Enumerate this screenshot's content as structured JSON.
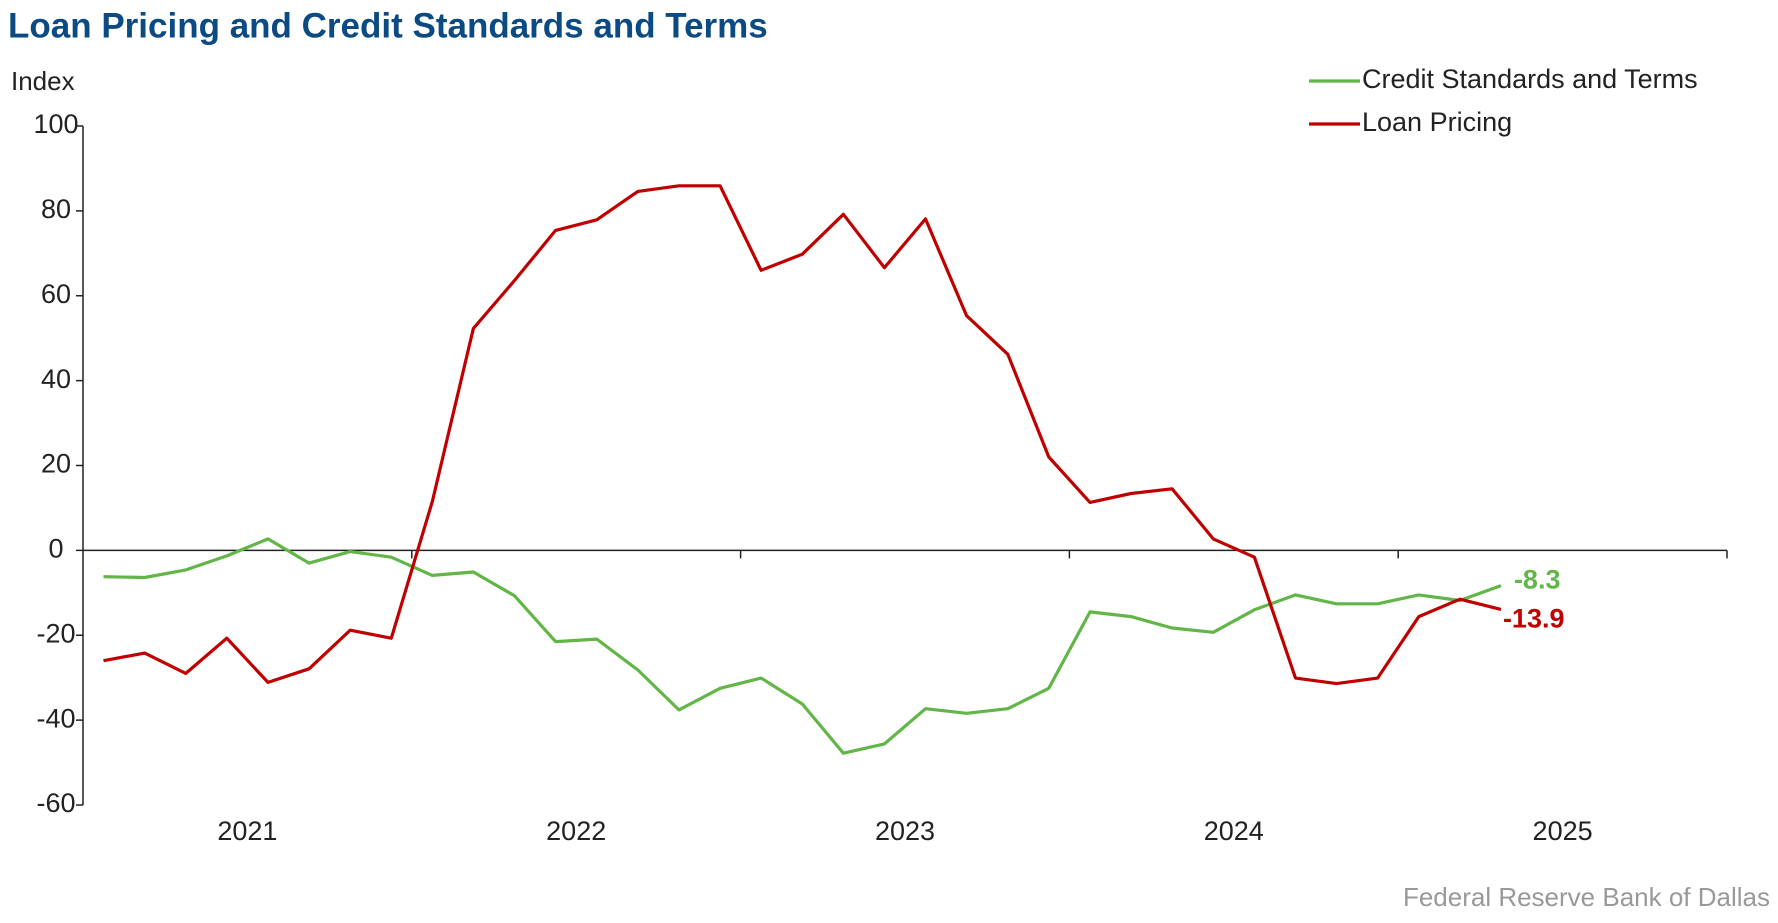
{
  "chart_data": {
    "type": "line",
    "title": "Loan Pricing and Credit Standards and Terms",
    "y_label": "Index",
    "source": "Federal Reserve Bank of Dallas",
    "x": [
      2021.0625,
      2021.1875,
      2021.3125,
      2021.4375,
      2021.5625,
      2021.6875,
      2021.8125,
      2021.9375,
      2022.0625,
      2022.1875,
      2022.3125,
      2022.4375,
      2022.5625,
      2022.6875,
      2022.8125,
      2022.9375,
      2023.0625,
      2023.1875,
      2023.3125,
      2023.4375,
      2023.5625,
      2023.6875,
      2023.8125,
      2023.9375,
      2024.0625,
      2024.1875,
      2024.3125,
      2024.4375,
      2024.5625,
      2024.6875,
      2024.8125,
      2024.9375,
      2025.0625,
      2025.1875,
      2025.3125
    ],
    "series": [
      {
        "name": "Credit Standards and Terms",
        "color": "#62b547",
        "values": [
          -6.2,
          -6.4,
          -4.6,
          -1.3,
          2.7,
          -3.0,
          -0.3,
          -1.6,
          -5.9,
          -5.1,
          -10.7,
          -21.5,
          -20.9,
          -28.2,
          -37.6,
          -32.5,
          -30.1,
          -36.2,
          -47.8,
          -45.6,
          -37.3,
          -38.4,
          -37.3,
          -32.5,
          -14.5,
          -15.6,
          -18.3,
          -19.3,
          -14.0,
          -10.5,
          -12.6,
          -12.6,
          -10.5,
          -11.8,
          -8.3
        ]
      },
      {
        "name": "Loan Pricing",
        "color": "#c00000",
        "values": [
          -26.0,
          -24.2,
          -29.0,
          -20.7,
          -31.1,
          -27.9,
          -18.8,
          -20.7,
          11.5,
          52.3,
          63.6,
          75.4,
          77.9,
          84.6,
          85.9,
          85.9,
          66.0,
          69.8,
          79.2,
          66.6,
          78.1,
          55.3,
          46.2,
          22.0,
          11.3,
          13.4,
          14.5,
          2.7,
          -1.6,
          -30.1,
          -31.4,
          -30.1,
          -15.6,
          -11.5,
          -13.9
        ]
      }
    ],
    "xlim": [
      2021,
      2026
    ],
    "xticks": [
      {
        "value": 2021.5,
        "label": "2021"
      },
      {
        "value": 2022.5,
        "label": "2022"
      },
      {
        "value": 2023.5,
        "label": "2023"
      },
      {
        "value": 2024.5,
        "label": "2024"
      },
      {
        "value": 2025.5,
        "label": "2025"
      }
    ],
    "ylim": [
      -60,
      100
    ],
    "yticks": [
      -60,
      -40,
      -20,
      0,
      20,
      40,
      60,
      80,
      100
    ],
    "legend": "top-right"
  }
}
